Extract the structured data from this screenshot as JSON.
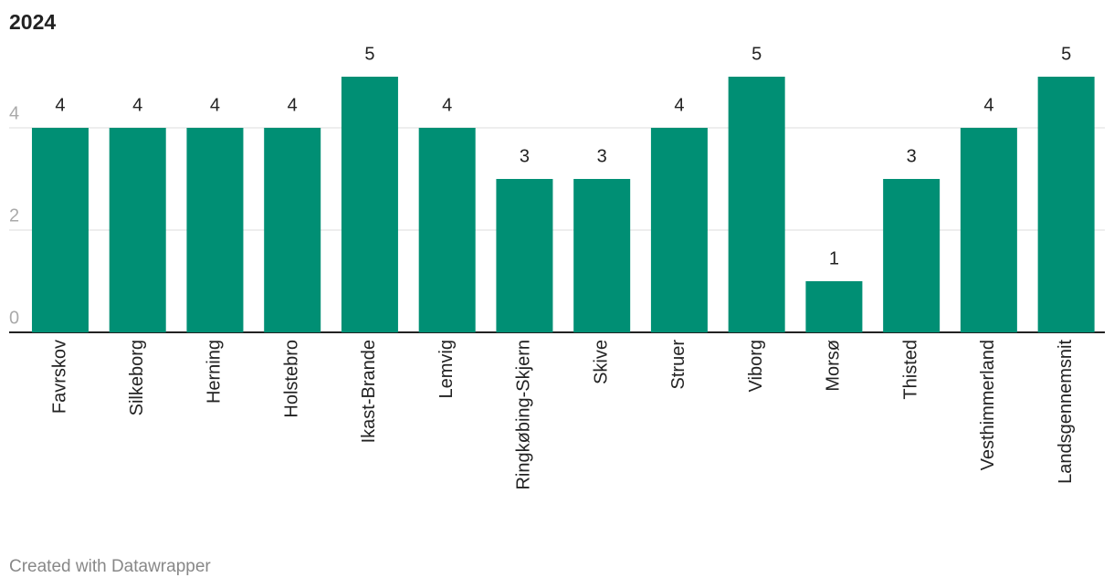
{
  "chart_data": {
    "type": "bar",
    "title": "2024",
    "categories": [
      "Favrskov",
      "Silkeborg",
      "Herning",
      "Holstebro",
      "Ikast-Brande",
      "Lemvig",
      "Ringkøbing-Skjern",
      "Skive",
      "Struer",
      "Viborg",
      "Morsø",
      "Thisted",
      "Vesthimmerland",
      "Landsgennemsnit"
    ],
    "values": [
      4,
      4,
      4,
      4,
      5,
      4,
      3,
      3,
      4,
      5,
      1,
      3,
      4,
      5
    ],
    "color": "#008f74",
    "ylim": [
      0,
      5
    ],
    "yticks": [
      0,
      2,
      4
    ],
    "grid": true,
    "footer": "Created with Datawrapper"
  }
}
